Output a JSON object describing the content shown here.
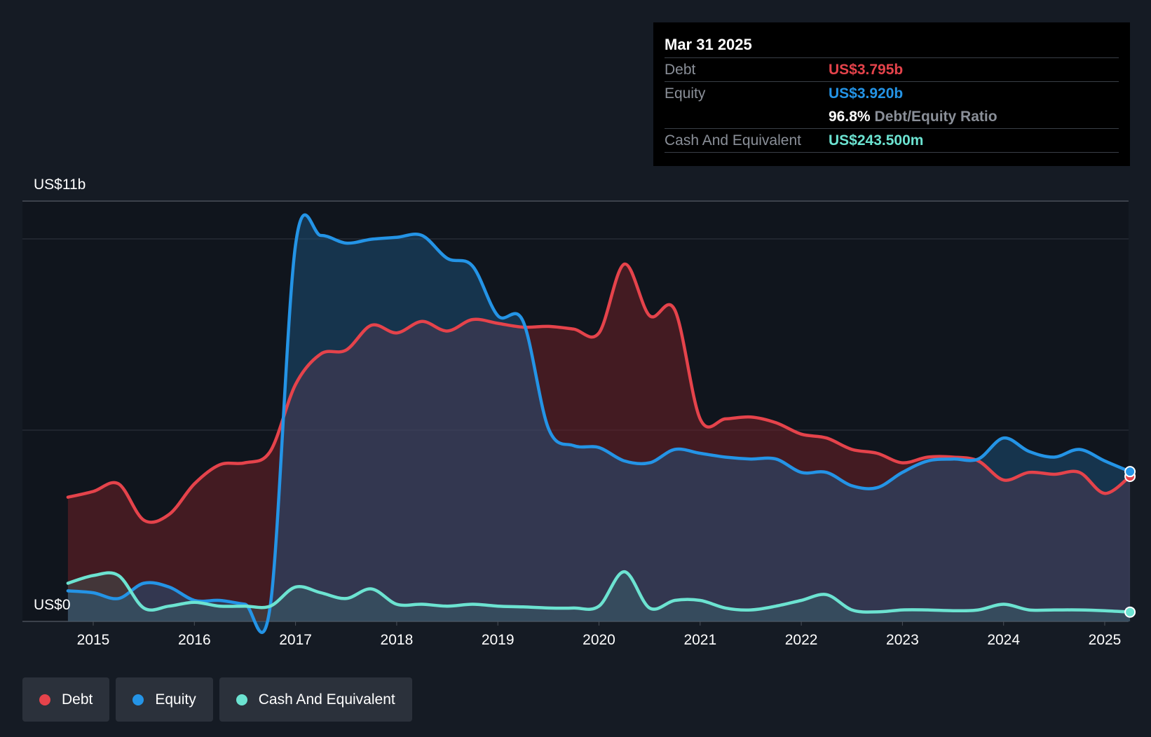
{
  "tooltip": {
    "date": "Mar 31 2025",
    "debt_label": "Debt",
    "debt_value": "US$3.795b",
    "equity_label": "Equity",
    "equity_value": "US$3.920b",
    "ratio_value": "96.8%",
    "ratio_label": "Debt/Equity Ratio",
    "cash_label": "Cash And Equivalent",
    "cash_value": "US$243.500m"
  },
  "legend": {
    "debt": "Debt",
    "equity": "Equity",
    "cash": "Cash And Equivalent"
  },
  "colors": {
    "debt": "#e5434b",
    "equity": "#2494e6",
    "cash": "#6ce3d1",
    "background": "#151b24"
  },
  "chart_data": {
    "type": "area",
    "title": "",
    "xlabel": "",
    "ylabel": "",
    "ylim": [
      0,
      11
    ],
    "y_top_label": "US$11b",
    "y_bottom_label": "US$0",
    "xlim": [
      2014.75,
      2025.25
    ],
    "x_ticks": [
      "2015",
      "2016",
      "2017",
      "2018",
      "2019",
      "2020",
      "2021",
      "2022",
      "2023",
      "2024",
      "2025"
    ],
    "grid": true,
    "legend_position": "bottom-left",
    "series": [
      {
        "name": "Debt",
        "unit": "US$ billions",
        "points": [
          [
            2014.75,
            3.25
          ],
          [
            2015.0,
            3.4
          ],
          [
            2015.25,
            3.6
          ],
          [
            2015.5,
            2.65
          ],
          [
            2015.75,
            2.8
          ],
          [
            2016.0,
            3.6
          ],
          [
            2016.25,
            4.1
          ],
          [
            2016.5,
            4.15
          ],
          [
            2016.75,
            4.45
          ],
          [
            2017.0,
            6.2
          ],
          [
            2017.25,
            7.0
          ],
          [
            2017.5,
            7.1
          ],
          [
            2017.75,
            7.75
          ],
          [
            2018.0,
            7.55
          ],
          [
            2018.25,
            7.85
          ],
          [
            2018.5,
            7.6
          ],
          [
            2018.75,
            7.9
          ],
          [
            2019.0,
            7.8
          ],
          [
            2019.25,
            7.7
          ],
          [
            2019.5,
            7.72
          ],
          [
            2019.75,
            7.65
          ],
          [
            2020.0,
            7.55
          ],
          [
            2020.25,
            9.35
          ],
          [
            2020.5,
            8.0
          ],
          [
            2020.75,
            8.15
          ],
          [
            2021.0,
            5.3
          ],
          [
            2021.25,
            5.3
          ],
          [
            2021.5,
            5.35
          ],
          [
            2021.75,
            5.2
          ],
          [
            2022.0,
            4.9
          ],
          [
            2022.25,
            4.8
          ],
          [
            2022.5,
            4.5
          ],
          [
            2022.75,
            4.4
          ],
          [
            2023.0,
            4.15
          ],
          [
            2023.25,
            4.3
          ],
          [
            2023.5,
            4.3
          ],
          [
            2023.75,
            4.2
          ],
          [
            2024.0,
            3.7
          ],
          [
            2024.25,
            3.9
          ],
          [
            2024.5,
            3.85
          ],
          [
            2024.75,
            3.9
          ],
          [
            2025.0,
            3.35
          ],
          [
            2025.25,
            3.795
          ]
        ]
      },
      {
        "name": "Equity",
        "unit": "US$ billions",
        "points": [
          [
            2014.75,
            0.8
          ],
          [
            2015.0,
            0.75
          ],
          [
            2015.25,
            0.6
          ],
          [
            2015.5,
            1.0
          ],
          [
            2015.75,
            0.9
          ],
          [
            2016.0,
            0.55
          ],
          [
            2016.25,
            0.55
          ],
          [
            2016.5,
            0.45
          ],
          [
            2016.75,
            0.4
          ],
          [
            2017.0,
            9.85
          ],
          [
            2017.25,
            10.1
          ],
          [
            2017.5,
            9.9
          ],
          [
            2017.75,
            10.0
          ],
          [
            2018.0,
            10.05
          ],
          [
            2018.25,
            10.1
          ],
          [
            2018.5,
            9.5
          ],
          [
            2018.75,
            9.3
          ],
          [
            2019.0,
            8.0
          ],
          [
            2019.25,
            7.85
          ],
          [
            2019.5,
            5.05
          ],
          [
            2019.75,
            4.6
          ],
          [
            2020.0,
            4.55
          ],
          [
            2020.25,
            4.2
          ],
          [
            2020.5,
            4.15
          ],
          [
            2020.75,
            4.5
          ],
          [
            2021.0,
            4.4
          ],
          [
            2021.25,
            4.3
          ],
          [
            2021.5,
            4.25
          ],
          [
            2021.75,
            4.25
          ],
          [
            2022.0,
            3.9
          ],
          [
            2022.25,
            3.9
          ],
          [
            2022.5,
            3.55
          ],
          [
            2022.75,
            3.5
          ],
          [
            2023.0,
            3.9
          ],
          [
            2023.25,
            4.2
          ],
          [
            2023.5,
            4.25
          ],
          [
            2023.75,
            4.25
          ],
          [
            2024.0,
            4.8
          ],
          [
            2024.25,
            4.45
          ],
          [
            2024.5,
            4.3
          ],
          [
            2024.75,
            4.5
          ],
          [
            2025.0,
            4.2
          ],
          [
            2025.25,
            3.92
          ]
        ]
      },
      {
        "name": "Cash And Equivalent",
        "unit": "US$ billions",
        "points": [
          [
            2014.75,
            1.0
          ],
          [
            2015.0,
            1.2
          ],
          [
            2015.25,
            1.2
          ],
          [
            2015.5,
            0.35
          ],
          [
            2015.75,
            0.4
          ],
          [
            2016.0,
            0.5
          ],
          [
            2016.25,
            0.4
          ],
          [
            2016.5,
            0.4
          ],
          [
            2016.75,
            0.4
          ],
          [
            2017.0,
            0.9
          ],
          [
            2017.25,
            0.75
          ],
          [
            2017.5,
            0.6
          ],
          [
            2017.75,
            0.85
          ],
          [
            2018.0,
            0.45
          ],
          [
            2018.25,
            0.45
          ],
          [
            2018.5,
            0.4
          ],
          [
            2018.75,
            0.45
          ],
          [
            2019.0,
            0.4
          ],
          [
            2019.25,
            0.38
          ],
          [
            2019.5,
            0.35
          ],
          [
            2019.75,
            0.35
          ],
          [
            2020.0,
            0.4
          ],
          [
            2020.25,
            1.3
          ],
          [
            2020.5,
            0.35
          ],
          [
            2020.75,
            0.55
          ],
          [
            2021.0,
            0.55
          ],
          [
            2021.25,
            0.35
          ],
          [
            2021.5,
            0.3
          ],
          [
            2021.75,
            0.4
          ],
          [
            2022.0,
            0.55
          ],
          [
            2022.25,
            0.7
          ],
          [
            2022.5,
            0.3
          ],
          [
            2022.75,
            0.25
          ],
          [
            2023.0,
            0.3
          ],
          [
            2023.25,
            0.3
          ],
          [
            2023.5,
            0.28
          ],
          [
            2023.75,
            0.3
          ],
          [
            2024.0,
            0.45
          ],
          [
            2024.25,
            0.3
          ],
          [
            2024.5,
            0.3
          ],
          [
            2024.75,
            0.3
          ],
          [
            2025.0,
            0.28
          ],
          [
            2025.25,
            0.2435
          ]
        ]
      }
    ]
  }
}
